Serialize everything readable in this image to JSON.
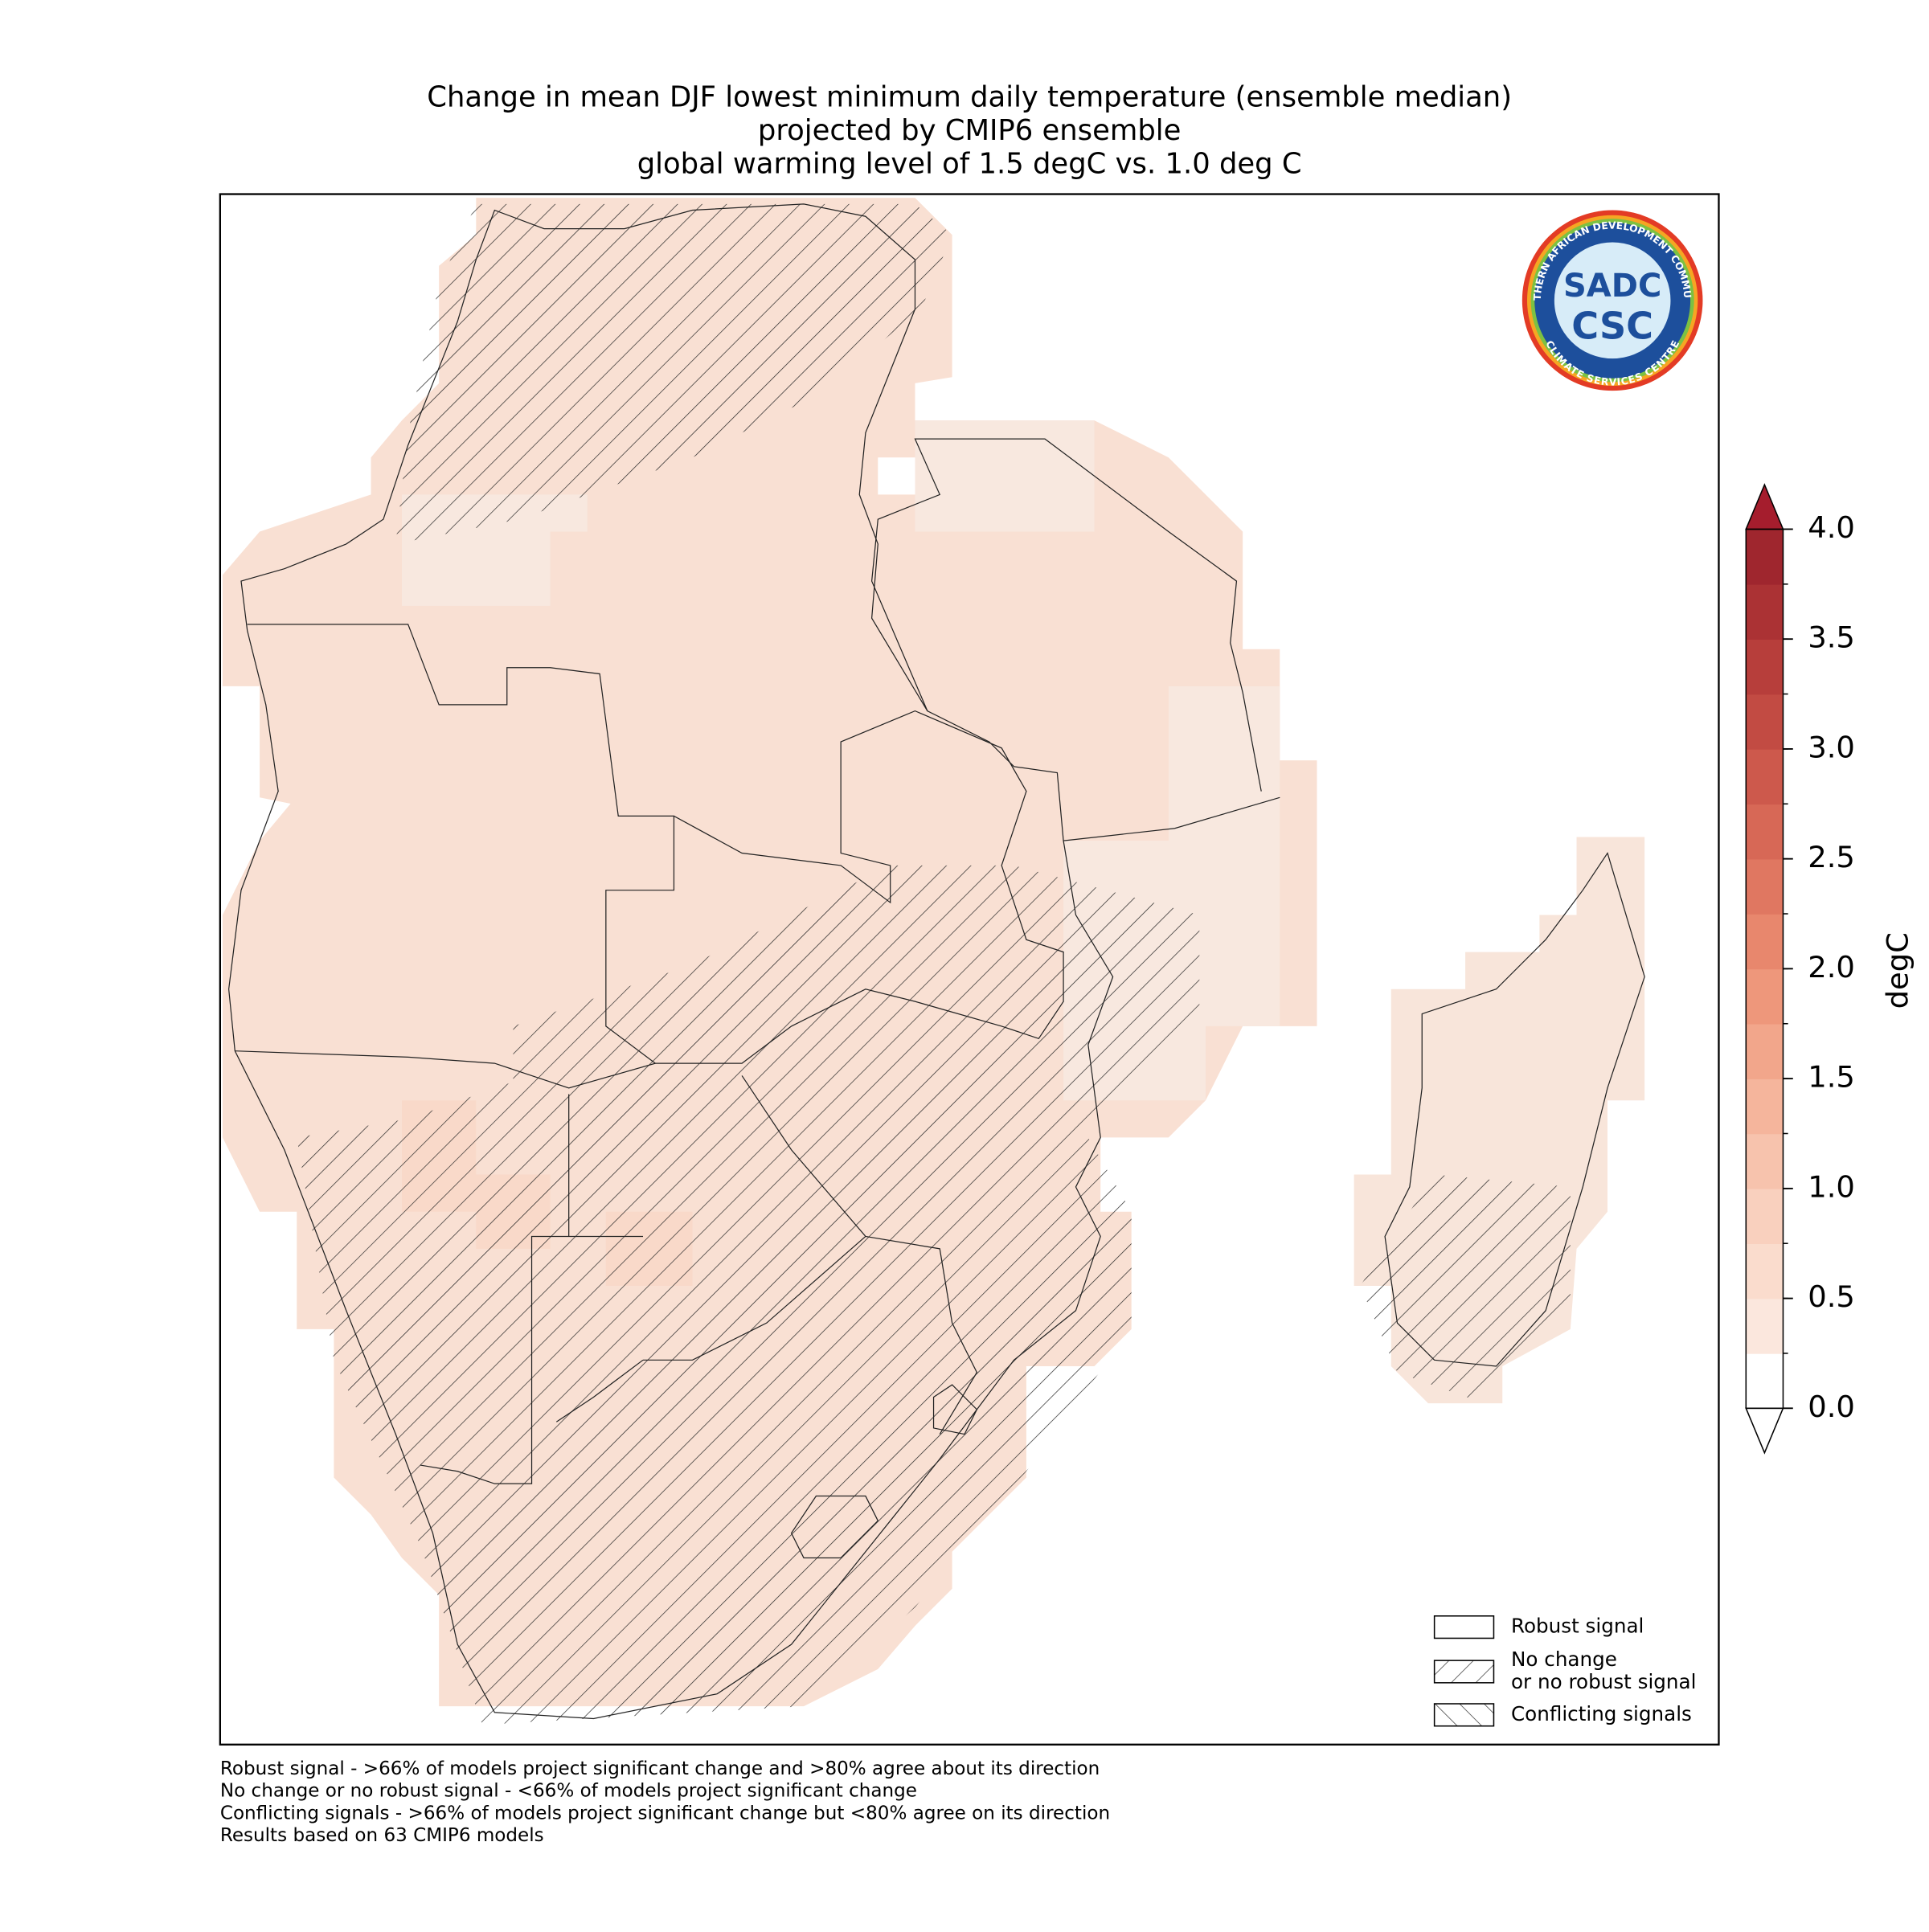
{
  "title": [
    "Change in mean DJF lowest minimum daily temperature (ensemble median)",
    "projected by CMIP6 ensemble",
    "global warming level of 1.5 degC vs. 1.0 deg C"
  ],
  "colorbar": {
    "label": "degC",
    "lim": [
      0,
      4
    ],
    "ticks": [
      {
        "value": 0,
        "label": "0.0"
      },
      0.5,
      {
        "value": 1,
        "label": "1.0"
      },
      1.5,
      {
        "value": 2,
        "label": "2.0"
      },
      2.5,
      {
        "value": 3,
        "label": "3.0"
      },
      3.5,
      {
        "value": 4,
        "label": "4.0"
      }
    ],
    "colors": [
      "#ffffff",
      "#fbe7dd",
      "#fadccd",
      "#f9d0be",
      "#f7c3ad",
      "#f5b59c",
      "#f2a68b",
      "#ee977b",
      "#e8876d",
      "#e07761",
      "#d76856",
      "#cd594c",
      "#c24b43",
      "#b73e3b",
      "#ab3234",
      "#9f262e"
    ],
    "over_color": "#a51d2d",
    "under_color": "#ffffff"
  },
  "legend": [
    {
      "label": [
        "Robust signal"
      ],
      "hatch": "none"
    },
    {
      "label": [
        "No change",
        "or no robust signal"
      ],
      "hatch": "forward"
    },
    {
      "label": [
        "Conflicting signals"
      ],
      "hatch": "back"
    }
  ],
  "notes": [
    "Robust signal - >66% of models project significant change and >80% agree about its direction",
    "No change or no robust signal - <66% of models project significant change",
    "Conflicting signals - >66% of models project significant change but <80% agree on its direction",
    "Results based on 63 CMIP6 models"
  ],
  "logo": {
    "top": "SOUTHERN AFRICAN DEVELOPMENT COMMUNITY",
    "bottom": "CLIMATE SERVICES CENTRE",
    "upper": "SADC",
    "lower": "CSC"
  }
}
